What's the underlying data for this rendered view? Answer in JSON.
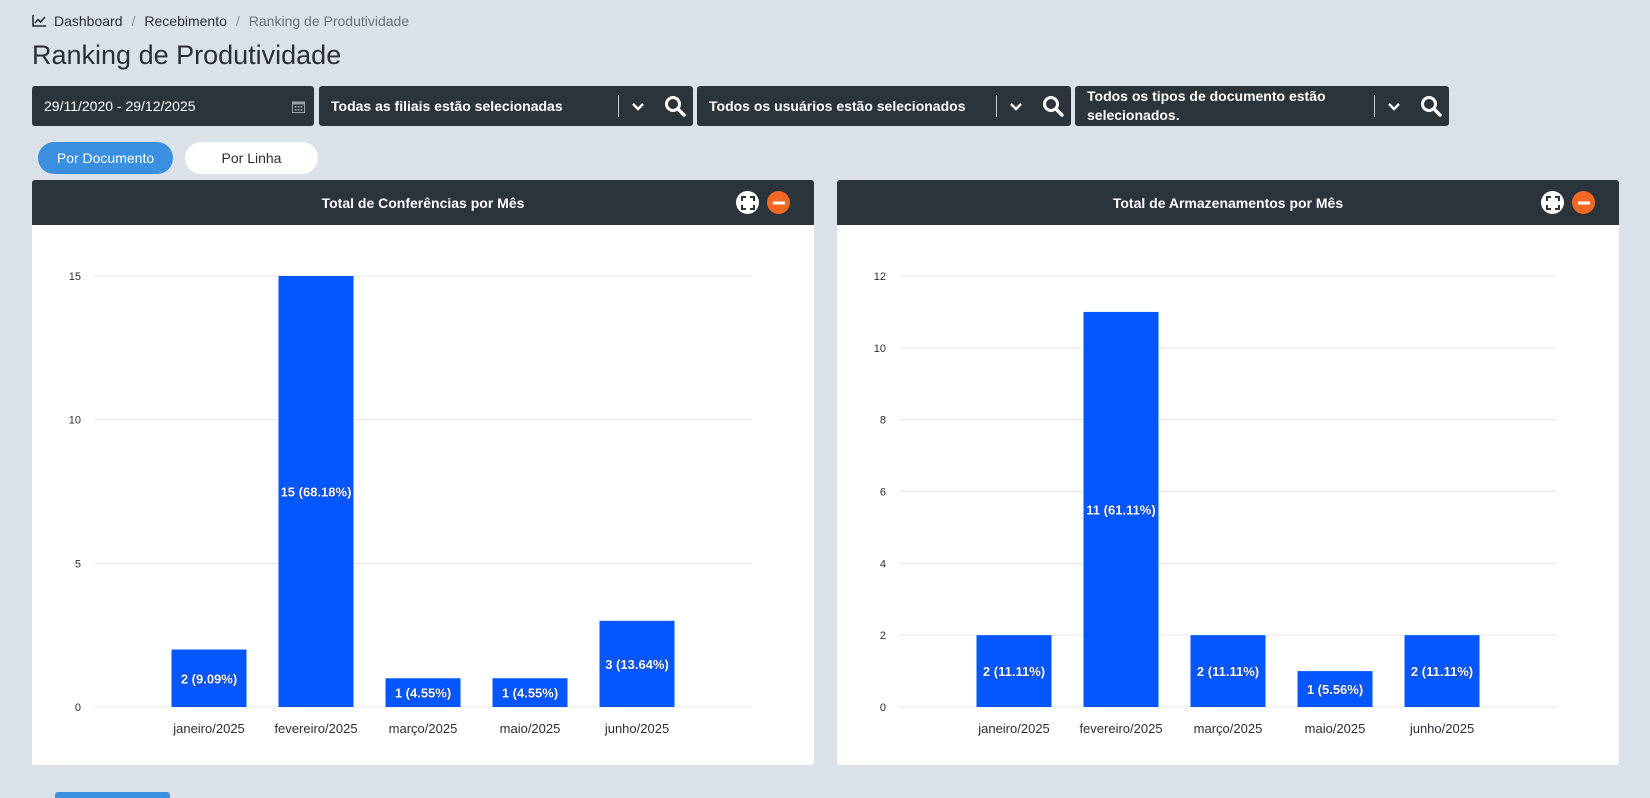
{
  "breadcrumb": {
    "items": [
      "Dashboard",
      "Recebimento",
      "Ranking de Produtividade"
    ],
    "icon": "chart-line-icon"
  },
  "page": {
    "title": "Ranking de Produtividade"
  },
  "filters": {
    "date_range": "29/11/2020 - 29/12/2025",
    "branches": "Todas as filiais estão selecionadas",
    "users": "Todos os usuários estão selecionados",
    "doc_types": "Todos os tipos de documento estão selecionados."
  },
  "toggles": {
    "by_document": "Por Documento",
    "by_line": "Por Linha",
    "active": "by_document"
  },
  "colors": {
    "bar": "#0457ff",
    "header": "#2b333b",
    "accent": "#3b8fe0",
    "collapse": "#f26722"
  },
  "chart_data": [
    {
      "type": "bar",
      "title": "Total de Conferências por Mês",
      "categories": [
        "janeiro/2025",
        "fevereiro/2025",
        "março/2025",
        "maio/2025",
        "junho/2025"
      ],
      "values": [
        2,
        15,
        1,
        1,
        3
      ],
      "labels": [
        "2 (9.09%)",
        "15 (68.18%)",
        "1 (4.55%)",
        "1 (4.55%)",
        "3 (13.64%)"
      ],
      "yticks": [
        0,
        5,
        10,
        15
      ],
      "ylim": [
        0,
        15
      ],
      "grid": true
    },
    {
      "type": "bar",
      "title": "Total de Armazenamentos por Mês",
      "categories": [
        "janeiro/2025",
        "fevereiro/2025",
        "março/2025",
        "maio/2025",
        "junho/2025"
      ],
      "values": [
        2,
        11,
        2,
        1,
        2
      ],
      "labels": [
        "2 (11.11%)",
        "11 (61.11%)",
        "2 (11.11%)",
        "1 (5.56%)",
        "2 (11.11%)"
      ],
      "yticks": [
        0,
        2,
        4,
        6,
        8,
        10,
        12
      ],
      "ylim": [
        0,
        12
      ],
      "grid": true
    }
  ]
}
